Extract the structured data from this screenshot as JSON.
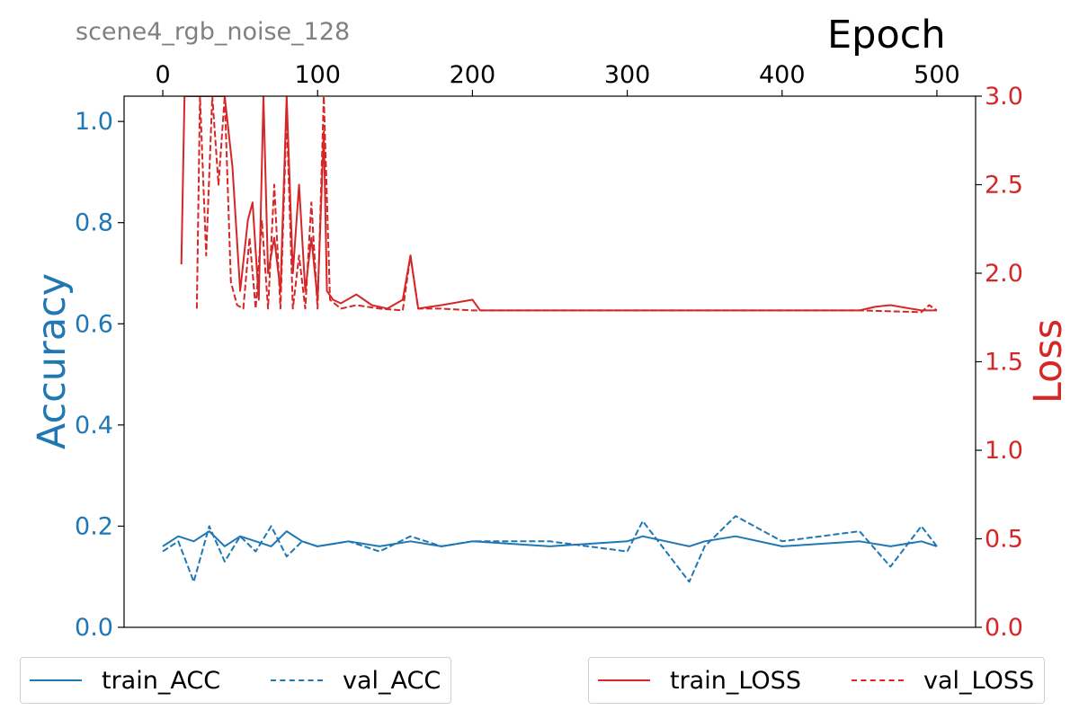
{
  "chart_data": {
    "type": "line",
    "title": "scene4_rgb_noise_128",
    "xlabel": "Epoch",
    "ylabel_left": "Accuracy",
    "ylabel_right": "Loss",
    "xlim": [
      -25,
      525
    ],
    "ylim_left": [
      0.0,
      1.05
    ],
    "ylim_right": [
      0.0,
      3.0
    ],
    "x_ticks": [
      "0",
      "100",
      "200",
      "300",
      "400",
      "500"
    ],
    "y_left_ticks": [
      "0.0",
      "0.2",
      "0.4",
      "0.6",
      "0.8",
      "1.0"
    ],
    "y_right_ticks": [
      "0.0",
      "0.5",
      "1.0",
      "1.5",
      "2.0",
      "2.5",
      "3.0"
    ],
    "grid": false,
    "colors": {
      "acc": "#1f77b4",
      "loss": "#d62728",
      "title": "#808080"
    },
    "legend_left": {
      "placement": "bottom-left",
      "entries": [
        "train_ACC",
        "val_ACC"
      ]
    },
    "legend_right": {
      "placement": "bottom-right",
      "entries": [
        "train_LOSS",
        "val_LOSS"
      ]
    },
    "series": [
      {
        "name": "train_ACC",
        "axis": "left",
        "style": "solid",
        "x": [
          0,
          10,
          20,
          30,
          40,
          50,
          60,
          70,
          80,
          90,
          100,
          120,
          140,
          160,
          180,
          200,
          250,
          300,
          310,
          340,
          350,
          370,
          400,
          450,
          470,
          490,
          500
        ],
        "y": [
          0.16,
          0.18,
          0.17,
          0.19,
          0.16,
          0.18,
          0.17,
          0.16,
          0.19,
          0.17,
          0.16,
          0.17,
          0.16,
          0.17,
          0.16,
          0.17,
          0.16,
          0.17,
          0.18,
          0.16,
          0.17,
          0.18,
          0.16,
          0.17,
          0.16,
          0.17,
          0.16
        ]
      },
      {
        "name": "val_ACC",
        "axis": "left",
        "style": "dashed",
        "x": [
          0,
          10,
          20,
          30,
          40,
          50,
          60,
          70,
          80,
          90,
          100,
          120,
          140,
          160,
          180,
          200,
          250,
          300,
          310,
          340,
          350,
          370,
          400,
          450,
          470,
          490,
          500
        ],
        "y": [
          0.15,
          0.17,
          0.09,
          0.2,
          0.13,
          0.18,
          0.15,
          0.2,
          0.14,
          0.17,
          0.16,
          0.17,
          0.15,
          0.18,
          0.16,
          0.17,
          0.17,
          0.15,
          0.21,
          0.09,
          0.16,
          0.22,
          0.17,
          0.19,
          0.12,
          0.2,
          0.16
        ]
      },
      {
        "name": "train_LOSS",
        "axis": "right",
        "style": "solid",
        "x": [
          12,
          14,
          18,
          22,
          26,
          30,
          35,
          40,
          45,
          50,
          55,
          58,
          62,
          65,
          68,
          72,
          76,
          80,
          84,
          88,
          92,
          96,
          100,
          104,
          106,
          110,
          115,
          125,
          135,
          145,
          155,
          160,
          165,
          180,
          200,
          205,
          230,
          260,
          300,
          350,
          400,
          450,
          460,
          470,
          490,
          500
        ],
        "y": [
          2.05,
          3.0,
          3.0,
          3.0,
          3.0,
          3.0,
          3.0,
          3.0,
          2.6,
          1.9,
          2.3,
          2.4,
          1.85,
          3.0,
          2.0,
          2.2,
          1.9,
          3.0,
          2.0,
          2.5,
          1.9,
          2.2,
          1.85,
          2.8,
          1.9,
          1.85,
          1.83,
          1.88,
          1.82,
          1.8,
          1.85,
          2.1,
          1.8,
          1.82,
          1.85,
          1.79,
          1.79,
          1.79,
          1.79,
          1.79,
          1.79,
          1.79,
          1.81,
          1.82,
          1.79,
          1.79
        ]
      },
      {
        "name": "val_LOSS",
        "axis": "right",
        "style": "dashed",
        "x": [
          22,
          24,
          28,
          32,
          36,
          40,
          44,
          48,
          52,
          56,
          60,
          64,
          68,
          72,
          76,
          80,
          84,
          88,
          92,
          96,
          100,
          104,
          108,
          115,
          125,
          140,
          155,
          160,
          165,
          180,
          200,
          250,
          300,
          350,
          400,
          450,
          490,
          495,
          500
        ],
        "y": [
          1.8,
          3.0,
          2.1,
          3.0,
          2.5,
          3.0,
          1.95,
          1.82,
          1.8,
          2.2,
          1.8,
          2.3,
          1.8,
          2.5,
          1.8,
          2.9,
          1.8,
          2.1,
          1.8,
          2.4,
          1.8,
          3.0,
          1.85,
          1.8,
          1.82,
          1.8,
          1.79,
          2.1,
          1.8,
          1.8,
          1.79,
          1.79,
          1.79,
          1.79,
          1.79,
          1.79,
          1.78,
          1.82,
          1.79
        ]
      }
    ]
  }
}
